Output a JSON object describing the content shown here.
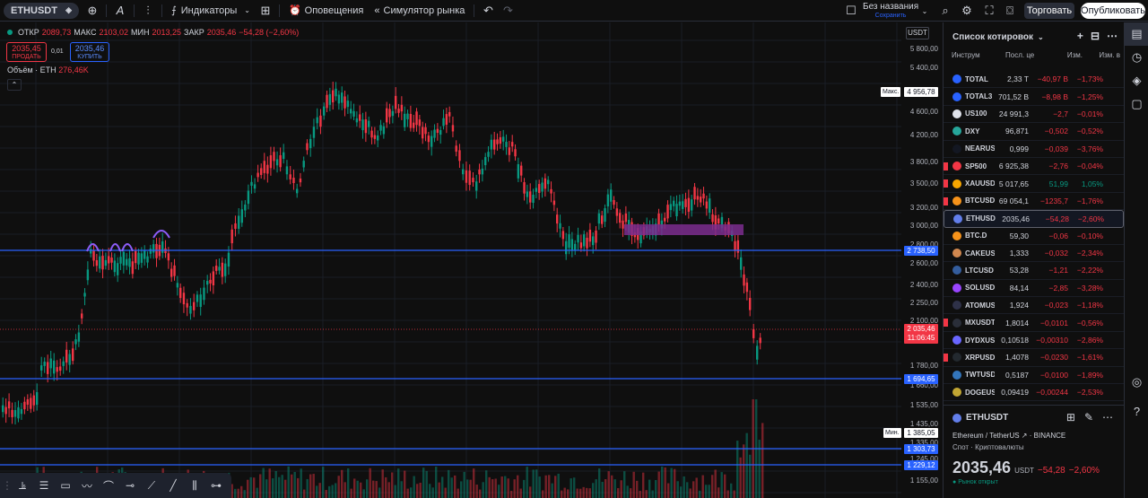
{
  "topbar": {
    "symbol": "ETHUSDT",
    "interval": "A",
    "indicators_label": "Индикаторы",
    "alerts_label": "Оповещения",
    "replay_label": "Симулятор рынка",
    "layout_name": "Без названия",
    "layout_status": "Сохранить",
    "trade_label": "Торговать",
    "publish_label": "Опубликовать"
  },
  "legend": {
    "open_label": "ОТКР",
    "open": "2089,73",
    "high_label": "МАКС",
    "high": "2103,02",
    "low_label": "МИН",
    "low": "2013,25",
    "close_label": "ЗАКР",
    "close": "2035,46",
    "change": "−54,28 (−2,60%)",
    "sell_price": "2035,45",
    "sell_label": "ПРОДАТЬ",
    "spread": "0,01",
    "buy_price": "2035,46",
    "buy_label": "КУПИТЬ",
    "volume_label": "Объём · ETH",
    "volume": "276,46K"
  },
  "axis": {
    "currency": "USDT",
    "ticks": [
      "5 800,00",
      "5 400,00",
      "4 956,78",
      "4 600,00",
      "4 200,00",
      "3 800,00",
      "3 500,00",
      "3 200,00",
      "3 000,00",
      "2 800,00",
      "2 600,00",
      "2 400,00",
      "2 250,00",
      "2 100,00",
      "1 780,00",
      "1 660,00",
      "1 535,00",
      "1 435,00",
      "1 335,00",
      "1 245,00",
      "1 155,00"
    ],
    "max_hint": "Макс.",
    "max_value": "4 956,78",
    "min_hint": "Мин.",
    "min_value": "1 385,05",
    "level_1": "2 738,50",
    "current_price": "2 035,46",
    "countdown": "11:06:45",
    "level_2": "1 694,65",
    "level_3": "1 303,73",
    "level_4": "1 229,12",
    "colors": {
      "up": "#089981",
      "down": "#f23645",
      "level": "#2962ff",
      "zone": "#7b2d8e"
    }
  },
  "watchlist": {
    "title": "Список котировок",
    "columns": {
      "symbol": "Инструм",
      "last": "Посл. це",
      "change": "Изм.",
      "change_pct": "Изм. в"
    },
    "rows": [
      {
        "sym": "TOTAL",
        "last": "2,33 T",
        "chg": "−40,97 B",
        "chgp": "−1,73%",
        "dir": "neg",
        "color": "#2962ff",
        "flag": false
      },
      {
        "sym": "TOTAL3",
        "last": "701,52 B",
        "chg": "−8,98 B",
        "chgp": "−1,25%",
        "dir": "neg",
        "color": "#2962ff",
        "flag": false
      },
      {
        "sym": "US100",
        "last": "24 991,3",
        "chg": "−2,7",
        "chgp": "−0,01%",
        "dir": "neg",
        "color": "#e0e3eb",
        "flag": false
      },
      {
        "sym": "DXY",
        "last": "96,871",
        "chg": "−0,502",
        "chgp": "−0,52%",
        "dir": "neg",
        "color": "#26a69a",
        "flag": false
      },
      {
        "sym": "NEARUS",
        "last": "0,999",
        "chg": "−0,039",
        "chgp": "−3,76%",
        "dir": "neg",
        "color": "#131722",
        "flag": false,
        "lastneg": true
      },
      {
        "sym": "SP500",
        "last": "6 925,38",
        "chg": "−2,76",
        "chgp": "−0,04%",
        "dir": "neg",
        "color": "#f23645",
        "flag": true
      },
      {
        "sym": "XAUUSD",
        "last": "5 017,65",
        "chg": "51,99",
        "chgp": "1,05%",
        "dir": "pos",
        "color": "#f7a600",
        "flag": true
      },
      {
        "sym": "BTCUSD",
        "last": "69 054,1",
        "chg": "−1235,7",
        "chgp": "−1,76%",
        "dir": "neg",
        "color": "#f7931a",
        "flag": true
      },
      {
        "sym": "ETHUSD",
        "last": "2035,46",
        "chg": "−54,28",
        "chgp": "−2,60%",
        "dir": "neg",
        "color": "#627eea",
        "flag": false,
        "selected": true
      },
      {
        "sym": "BTC.D",
        "last": "59,30",
        "chg": "−0,06",
        "chgp": "−0,10%",
        "dir": "neg",
        "color": "#f7931a",
        "flag": false
      },
      {
        "sym": "CAKEUS",
        "last": "1,333",
        "chg": "−0,032",
        "chgp": "−2,34%",
        "dir": "neg",
        "color": "#d1884f",
        "flag": false
      },
      {
        "sym": "LTCUSD",
        "last": "53,28",
        "chg": "−1,21",
        "chgp": "−2,22%",
        "dir": "neg",
        "color": "#345d9d",
        "flag": false
      },
      {
        "sym": "SOLUSD",
        "last": "84,14",
        "chg": "−2,85",
        "chgp": "−3,28%",
        "dir": "neg",
        "color": "#9945ff",
        "flag": false
      },
      {
        "sym": "ATOMUS",
        "last": "1,924",
        "chg": "−0,023",
        "chgp": "−1,18%",
        "dir": "neg",
        "color": "#2e3148",
        "flag": false
      },
      {
        "sym": "MXUSDT",
        "last": "1,8014",
        "chg": "−0,0101",
        "chgp": "−0,56%",
        "dir": "neg",
        "color": "#2a2e39",
        "flag": true
      },
      {
        "sym": "DYDXUS",
        "last": "0,10518",
        "chg": "−0,00310",
        "chgp": "−2,86%",
        "dir": "neg",
        "color": "#6966ff",
        "flag": false
      },
      {
        "sym": "XRPUSD",
        "last": "1,4078",
        "chg": "−0,0230",
        "chgp": "−1,61%",
        "dir": "neg",
        "color": "#23292f",
        "flag": true
      },
      {
        "sym": "TWTUSD",
        "last": "0,5187",
        "chg": "−0,0100",
        "chgp": "−1,89%",
        "dir": "neg",
        "color": "#3375bb",
        "flag": false
      },
      {
        "sym": "DOGEUS",
        "last": "0,09419",
        "chg": "−0,00244",
        "chgp": "−2,53%",
        "dir": "neg",
        "color": "#c2a633",
        "flag": false
      }
    ]
  },
  "detail": {
    "symbol": "ETHUSDT",
    "name": "Ethereum / TetherUS",
    "exchange": "BINANCE",
    "category": "Спот · Криптовалюты",
    "price": "2035,46",
    "currency": "USDT",
    "change": "−54,28",
    "change_pct": "−2,60%",
    "status": "Рынок открыт"
  }
}
